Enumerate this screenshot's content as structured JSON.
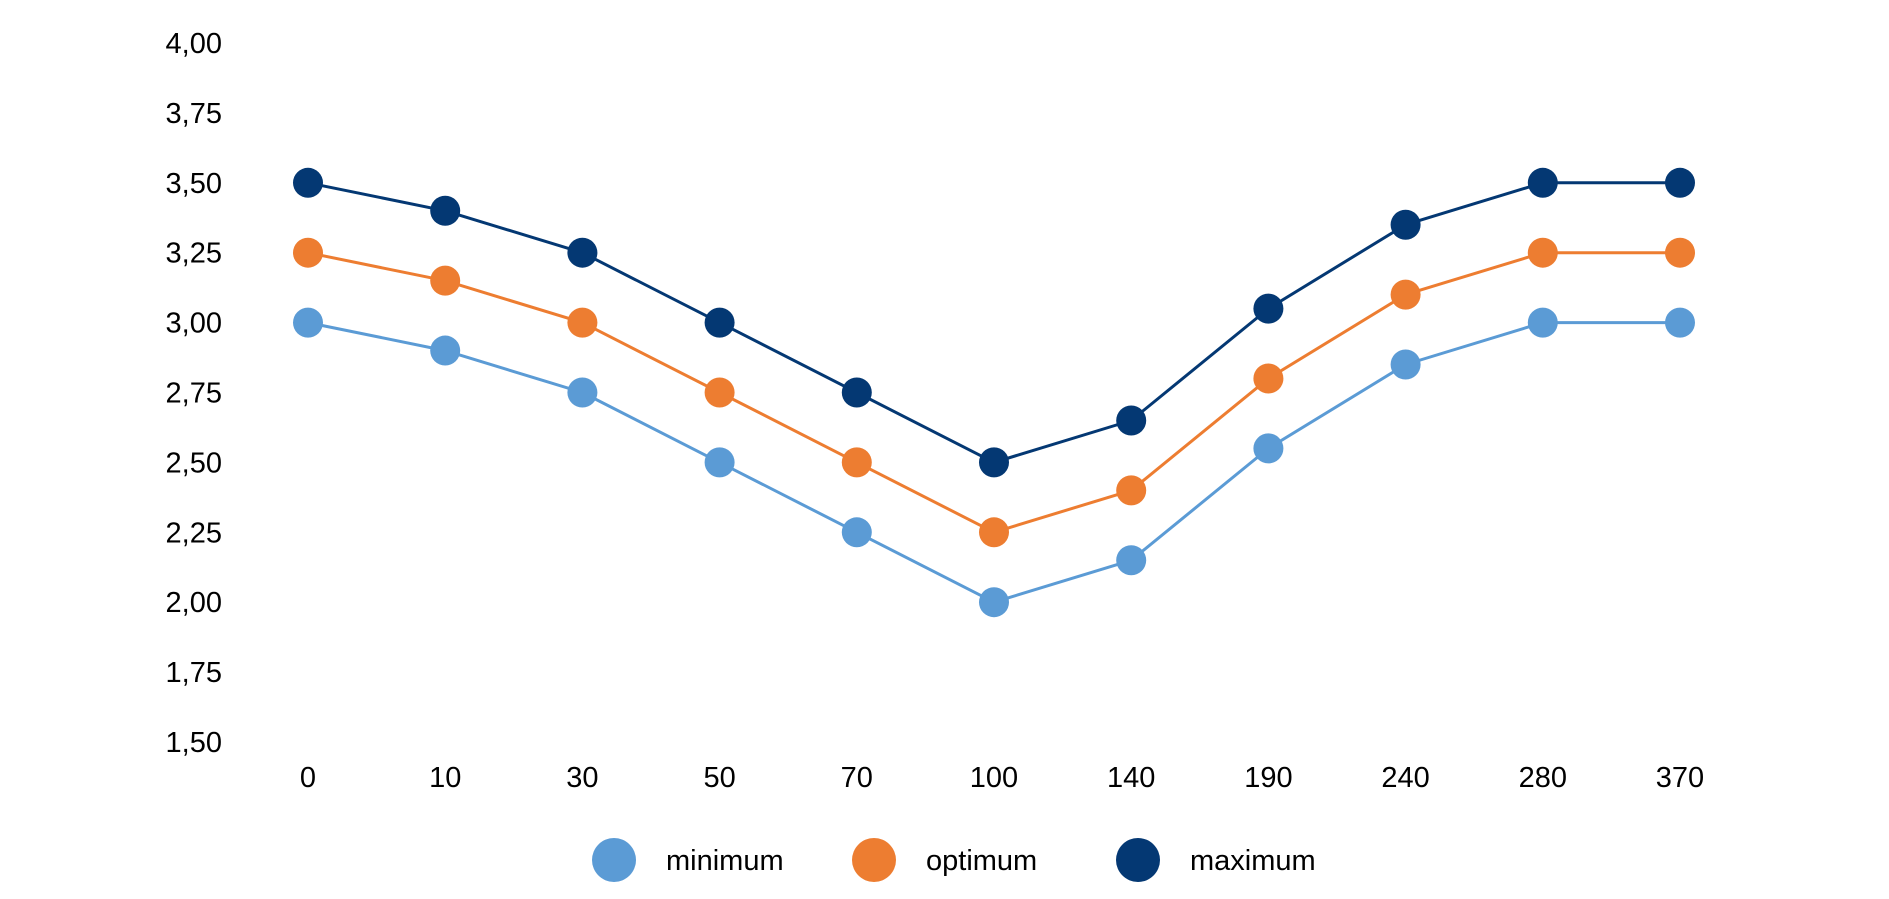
{
  "chart_data": {
    "type": "line",
    "title": "",
    "xlabel": "",
    "ylabel": "",
    "categories": [
      "0",
      "10",
      "30",
      "50",
      "70",
      "100",
      "140",
      "190",
      "240",
      "280",
      "370"
    ],
    "ylim": [
      1.5,
      4.0
    ],
    "yticks": [
      "1,50",
      "1,75",
      "2,00",
      "2,25",
      "2,50",
      "2,75",
      "3,00",
      "3,25",
      "3,50",
      "3,75",
      "4,00"
    ],
    "ytick_values": [
      1.5,
      1.75,
      2.0,
      2.25,
      2.5,
      2.75,
      3.0,
      3.25,
      3.5,
      3.75,
      4.0
    ],
    "grid": false,
    "legend_position": "bottom",
    "series": [
      {
        "name": "minimum",
        "color": "#5B9BD5",
        "values": [
          3.0,
          2.9,
          2.75,
          2.5,
          2.25,
          2.0,
          2.15,
          2.55,
          2.85,
          3.0,
          3.0
        ]
      },
      {
        "name": "optimum",
        "color": "#ED7D31",
        "values": [
          3.25,
          3.15,
          3.0,
          2.75,
          2.5,
          2.25,
          2.4,
          2.8,
          3.1,
          3.25,
          3.25
        ]
      },
      {
        "name": "maximum",
        "color": "#043873",
        "values": [
          3.5,
          3.4,
          3.25,
          3.0,
          2.75,
          2.5,
          2.65,
          3.05,
          3.35,
          3.5,
          3.5
        ]
      }
    ]
  }
}
